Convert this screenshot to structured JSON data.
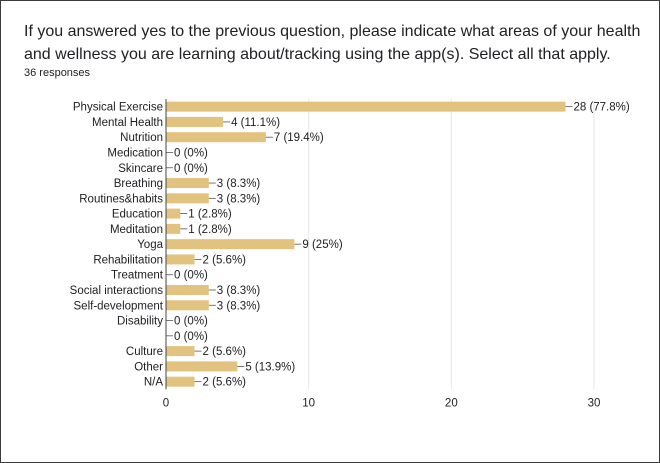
{
  "question": {
    "text": "If you answered yes to the previous question, please indicate what areas of your health and wellness you are learning about/tracking using the app(s). Select all that apply.",
    "responses": "36 responses"
  },
  "colors": {
    "bar": "#e2c27f",
    "grid": "#e6e6e6",
    "axis": "#444444",
    "text": "#202124"
  },
  "chart_data": {
    "type": "bar",
    "orientation": "horizontal",
    "categories": [
      "Physical Exercise",
      "Mental Health",
      "Nutrition",
      "Medication",
      "Skincare",
      "Breathing",
      "Routines&habits",
      "Education",
      "Meditation",
      "Yoga",
      "Rehabilitation",
      "Treatment",
      "Social interactions",
      "Self-development",
      "Disability",
      "",
      "Culture",
      "Other",
      "N/A"
    ],
    "values": [
      28,
      4,
      7,
      0,
      0,
      3,
      3,
      1,
      1,
      9,
      2,
      0,
      3,
      3,
      0,
      0,
      2,
      5,
      2
    ],
    "value_labels": [
      "28 (77.8%)",
      "4 (11.1%)",
      "7 (19.4%)",
      "0 (0%)",
      "0 (0%)",
      "3 (8.3%)",
      "3 (8.3%)",
      "1 (2.8%)",
      "1 (2.8%)",
      "9 (25%)",
      "2 (5.6%)",
      "0 (0%)",
      "3 (8.3%)",
      "3 (8.3%)",
      "0 (0%)",
      "0 (0%)",
      "2 (5.6%)",
      "5 (13.9%)",
      "2 (5.6%)"
    ],
    "xlim": [
      0,
      30
    ],
    "xticks": [
      0,
      10,
      20,
      30
    ],
    "grid": true
  }
}
